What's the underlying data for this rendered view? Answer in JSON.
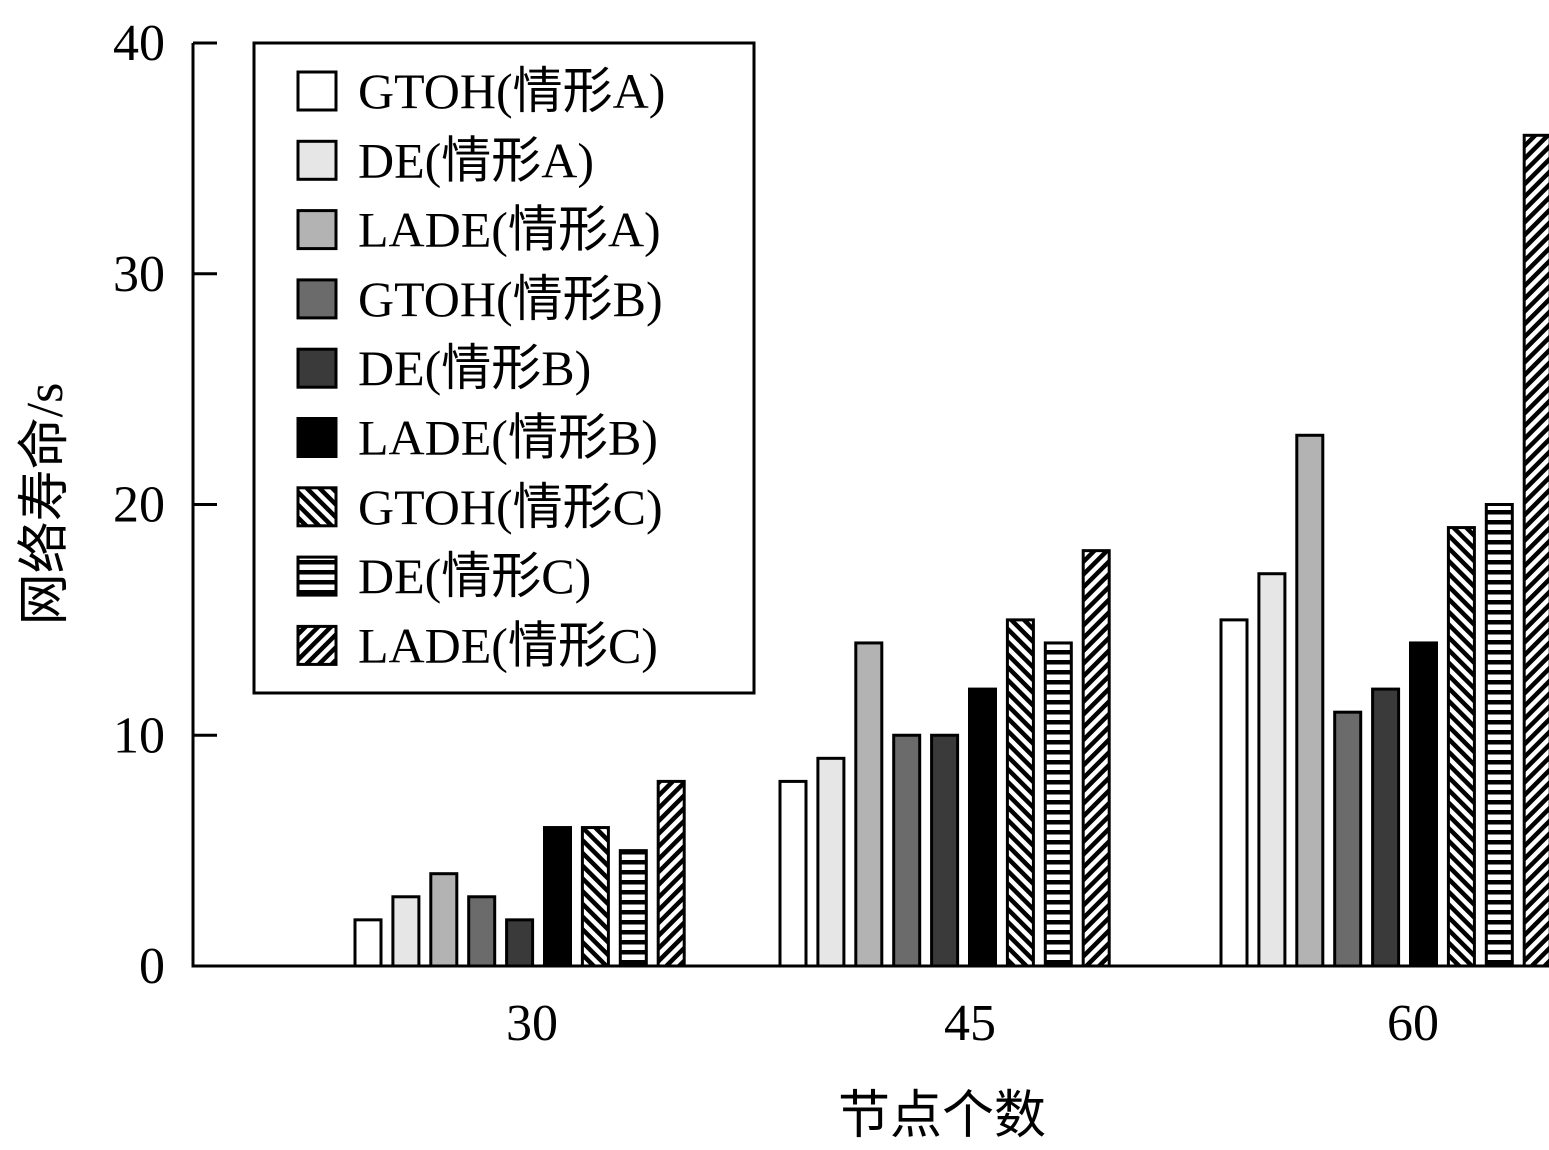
{
  "chart_data": {
    "type": "bar",
    "title": "",
    "xlabel": "节点个数",
    "ylabel": "网络寿命/s",
    "categories": [
      "30",
      "45",
      "60"
    ],
    "ylim": [
      0,
      40
    ],
    "yticks": [
      "0",
      "10",
      "20",
      "30",
      "40"
    ],
    "grid": false,
    "legend_position": "top-left",
    "series": [
      {
        "name": "GTOH(情形A)",
        "fill": "#ffffff",
        "pattern": "none",
        "values": [
          2,
          8,
          15
        ]
      },
      {
        "name": "DE(情形A)",
        "fill": "#e6e6e6",
        "pattern": "none",
        "values": [
          3,
          9,
          17
        ]
      },
      {
        "name": "LADE(情形A)",
        "fill": "#b3b3b3",
        "pattern": "none",
        "values": [
          4,
          14,
          23
        ]
      },
      {
        "name": "GTOH(情形B)",
        "fill": "#6b6b6b",
        "pattern": "none",
        "values": [
          3,
          10,
          11
        ]
      },
      {
        "name": "DE(情形B)",
        "fill": "#3a3a3a",
        "pattern": "none",
        "values": [
          2,
          10,
          12
        ]
      },
      {
        "name": "LADE(情形B)",
        "fill": "#000000",
        "pattern": "none",
        "values": [
          6,
          12,
          14
        ]
      },
      {
        "name": "GTOH(情形C)",
        "fill": "#ffffff",
        "pattern": "diag-back",
        "values": [
          6,
          15,
          19
        ]
      },
      {
        "name": "DE(情形C)",
        "fill": "#ffffff",
        "pattern": "horizontal",
        "values": [
          5,
          14,
          20
        ]
      },
      {
        "name": "LADE(情形C)",
        "fill": "#ffffff",
        "pattern": "diag-fwd",
        "values": [
          8,
          18,
          36
        ]
      }
    ]
  }
}
